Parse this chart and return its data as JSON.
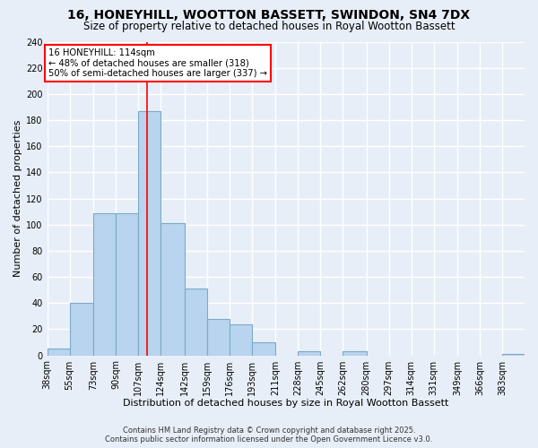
{
  "title": "16, HONEYHILL, WOOTTON BASSETT, SWINDON, SN4 7DX",
  "subtitle": "Size of property relative to detached houses in Royal Wootton Bassett",
  "xlabel": "Distribution of detached houses by size in Royal Wootton Bassett",
  "ylabel": "Number of detached properties",
  "bar_labels": [
    "38sqm",
    "55sqm",
    "73sqm",
    "90sqm",
    "107sqm",
    "124sqm",
    "142sqm",
    "159sqm",
    "176sqm",
    "193sqm",
    "211sqm",
    "228sqm",
    "245sqm",
    "262sqm",
    "280sqm",
    "297sqm",
    "314sqm",
    "331sqm",
    "349sqm",
    "366sqm",
    "383sqm"
  ],
  "bar_values": [
    5,
    40,
    109,
    109,
    187,
    101,
    51,
    28,
    24,
    10,
    0,
    3,
    0,
    3,
    0,
    0,
    0,
    0,
    0,
    0,
    1
  ],
  "bar_color": "#b8d4ee",
  "bar_edge_color": "#7aaac8",
  "ylim": [
    0,
    240
  ],
  "yticks": [
    0,
    20,
    40,
    60,
    80,
    100,
    120,
    140,
    160,
    180,
    200,
    220,
    240
  ],
  "property_line_x": 114,
  "property_line_label": "16 HONEYHILL: 114sqm",
  "annotation_line1": "← 48% of detached houses are smaller (318)",
  "annotation_line2": "50% of semi-detached houses are larger (337) →",
  "footer1": "Contains HM Land Registry data © Crown copyright and database right 2025.",
  "footer2": "Contains public sector information licensed under the Open Government Licence v3.0.",
  "bg_color": "#e8eef8",
  "grid_color": "#ffffff",
  "title_fontsize": 10,
  "subtitle_fontsize": 8.5,
  "axis_label_fontsize": 8,
  "tick_fontsize": 7,
  "left_edges": [
    38,
    55,
    73,
    90,
    107,
    124,
    142,
    159,
    176,
    193,
    211,
    228,
    245,
    262,
    280,
    297,
    314,
    331,
    349,
    366,
    383
  ]
}
